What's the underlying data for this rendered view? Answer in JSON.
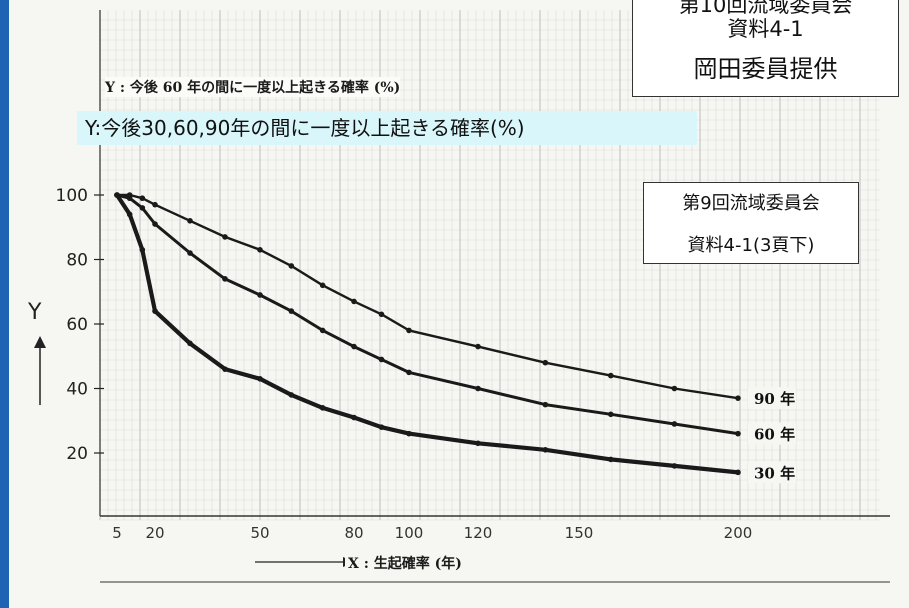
{
  "overlay": {
    "title_box": [
      "第10回流域委員会",
      "資料4-1",
      "岡田委員提供"
    ],
    "ref_box": [
      "第9回流域委員会",
      "資料4-1(3頁下)"
    ],
    "y_caption": "Y:今後30,60,90年の間に一度以上起きる確率(%)"
  },
  "chart_data": {
    "type": "line",
    "title": "Y : 今後 60 年の間に一度以上起きる確率 (%)",
    "xlabel": "X : 生起確率 (年)",
    "ylabel": "Y",
    "x_ticks": [
      "5",
      "20",
      "50",
      "80",
      "100",
      "120",
      "150",
      "200"
    ],
    "y_ticks": [
      "20",
      "40",
      "60",
      "80",
      "100"
    ],
    "series_colors": {
      "line": "#1a1a1a",
      "grid": "#bdbdbd",
      "accent_stripe": "#1f63b4",
      "caption_bg": "#d9f6fa"
    },
    "series": [
      {
        "name": "90 年",
        "x": [
          5,
          10,
          15,
          20,
          30,
          40,
          50,
          60,
          70,
          80,
          90,
          100,
          120,
          140,
          160,
          180,
          200
        ],
        "y": [
          100,
          100,
          99,
          97,
          92,
          87,
          83,
          78,
          72,
          67,
          63,
          58,
          53,
          48,
          44,
          40,
          37
        ]
      },
      {
        "name": "60 年",
        "x": [
          5,
          10,
          15,
          20,
          30,
          40,
          50,
          60,
          70,
          80,
          90,
          100,
          120,
          140,
          160,
          180,
          200
        ],
        "y": [
          100,
          99,
          96,
          91,
          82,
          74,
          69,
          64,
          58,
          53,
          49,
          45,
          40,
          35,
          32,
          29,
          26
        ]
      },
      {
        "name": "30 年",
        "x": [
          5,
          10,
          15,
          20,
          30,
          40,
          50,
          60,
          70,
          80,
          90,
          100,
          120,
          140,
          160,
          180,
          200
        ],
        "y": [
          100,
          94,
          83,
          64,
          54,
          46,
          43,
          38,
          34,
          31,
          28,
          26,
          23,
          21,
          18,
          16,
          14
        ]
      }
    ]
  }
}
